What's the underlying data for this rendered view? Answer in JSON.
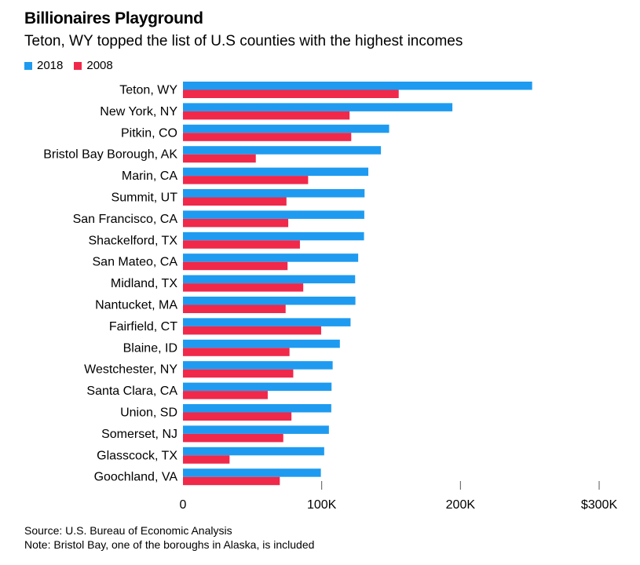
{
  "header": {
    "title": "Billionaires Playground",
    "subtitle": "Teton, WY topped the list of U.S counties with the highest incomes"
  },
  "footer": {
    "source": "Source: U.S. Bureau of Economic Analysis",
    "note": "Note: Bristol Bay, one of the boroughs in Alaska, is included"
  },
  "chart_data": {
    "type": "bar",
    "orientation": "horizontal",
    "title": "Billionaires Playground",
    "subtitle": "Teton, WY topped the list of U.S counties with the highest incomes",
    "categories": [
      "Teton, WY",
      "New York, NY",
      "Pitkin, CO",
      "Bristol Bay Borough, AK",
      "Marin, CA",
      "Summit, UT",
      "San Francisco, CA",
      "Shackelford, TX",
      "San Mateo, CA",
      "Midland, TX",
      "Nantucket, MA",
      "Fairfield, CT",
      "Blaine, ID",
      "Westchester, NY",
      "Santa Clara, CA",
      "Union, SD",
      "Somerset, NJ",
      "Glasscock, TX",
      "Goochland, VA"
    ],
    "series": [
      {
        "name": "2018",
        "color": "#1e9bf0",
        "values": [
          251700,
          194200,
          148600,
          142700,
          133600,
          130900,
          130700,
          130500,
          126300,
          124100,
          124300,
          120800,
          113100,
          107900,
          107100,
          106900,
          105200,
          101800,
          99400
        ]
      },
      {
        "name": "2008",
        "color": "#f0284a",
        "values": [
          155500,
          120100,
          121300,
          52500,
          90200,
          74600,
          75900,
          84300,
          75400,
          86700,
          74000,
          99600,
          76800,
          79500,
          61100,
          78200,
          72300,
          33600,
          69800
        ]
      }
    ],
    "xlim": [
      0,
      300000
    ],
    "xticks": [
      0,
      100000,
      200000,
      300000
    ],
    "xtick_labels": [
      "0",
      "100K",
      "200K",
      "$300K"
    ],
    "grid": false,
    "legend": "top-left"
  }
}
